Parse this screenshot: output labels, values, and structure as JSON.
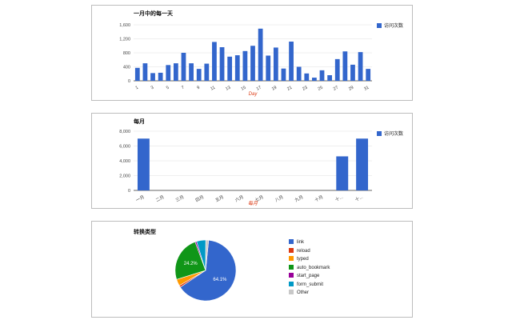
{
  "colors": {
    "bar": "#3366cc"
  },
  "chart_data": [
    {
      "type": "bar",
      "title": "一月中的每一天",
      "xlabel": "Day",
      "legend": [
        "访问次数"
      ],
      "legend_position": "right",
      "categories": [
        "1",
        "2",
        "3",
        "4",
        "5",
        "6",
        "7",
        "8",
        "9",
        "10",
        "11",
        "12",
        "13",
        "14",
        "15",
        "16",
        "17",
        "18",
        "19",
        "20",
        "21",
        "22",
        "23",
        "24",
        "25",
        "26",
        "27",
        "28",
        "29",
        "30",
        "31"
      ],
      "tick_labels": [
        "1",
        "3",
        "5",
        "7",
        "9",
        "11",
        "13",
        "15",
        "17",
        "19",
        "21",
        "23",
        "25",
        "27",
        "29",
        "31"
      ],
      "series": [
        {
          "name": "访问次数",
          "values": [
            370,
            500,
            220,
            230,
            450,
            500,
            800,
            500,
            340,
            490,
            1110,
            960,
            690,
            730,
            850,
            1000,
            1490,
            720,
            950,
            350,
            1120,
            400,
            210,
            90,
            300,
            160,
            620,
            840,
            460,
            820,
            340
          ]
        }
      ],
      "yticks": [
        "0",
        "400",
        "800",
        "1,200",
        "1,600"
      ],
      "ylim": [
        0,
        1600
      ],
      "grid": true
    },
    {
      "type": "bar",
      "title": "每月",
      "xlabel": "每月",
      "legend": [
        "访问次数"
      ],
      "legend_position": "right",
      "categories": [
        "一月",
        "二月",
        "三月",
        "四月",
        "五月",
        "六月",
        "七月",
        "八月",
        "九月",
        "十月",
        "十一月",
        "十二月"
      ],
      "tick_labels": [
        "一月",
        "二月",
        "三月",
        "四月",
        "五月",
        "六月",
        "七月",
        "八月",
        "九月",
        "十月",
        "十...",
        "十..."
      ],
      "series": [
        {
          "name": "访问次数",
          "values": [
            7000,
            0,
            0,
            0,
            0,
            0,
            0,
            0,
            0,
            0,
            4600,
            7000
          ]
        }
      ],
      "yticks": [
        "0",
        "2,000",
        "4,000",
        "6,000",
        "8,000"
      ],
      "ylim": [
        0,
        8000
      ],
      "grid": true
    },
    {
      "type": "pie",
      "title": "转换类型",
      "legend_position": "right",
      "slices": [
        {
          "label": "link",
          "value": 64.1,
          "color": "#3366cc",
          "text": "64.1%"
        },
        {
          "label": "reload",
          "value": 1.0,
          "color": "#dc3912",
          "text": ""
        },
        {
          "label": "typed",
          "value": 3.5,
          "color": "#ff9900",
          "text": ""
        },
        {
          "label": "auto_bookmark",
          "value": 24.2,
          "color": "#109618",
          "text": "24.2%"
        },
        {
          "label": "start_page",
          "value": 0.8,
          "color": "#990099",
          "text": ""
        },
        {
          "label": "form_submit",
          "value": 4.9,
          "color": "#0099c6",
          "text": ""
        },
        {
          "label": "Other",
          "value": 1.5,
          "color": "#c8c8c8",
          "text": ""
        }
      ]
    }
  ]
}
